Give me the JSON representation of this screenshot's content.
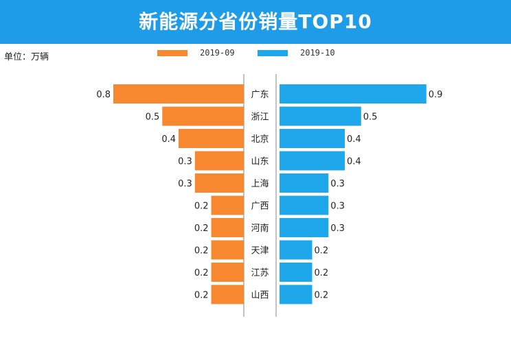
{
  "header": {
    "title": "新能源分省份销量TOP10"
  },
  "unit_label": "单位：万辆",
  "colors": {
    "banner": "#1e9ce8",
    "series_2019_09": "#f7882f",
    "series_2019_10": "#1ea7ea"
  },
  "chart_data": {
    "type": "bar",
    "orientation": "horizontal-butterfly",
    "title": "新能源分省份销量TOP10",
    "unit": "单位：万辆",
    "legend_position": "top",
    "categories": [
      "广东",
      "浙江",
      "北京",
      "山东",
      "上海",
      "广西",
      "河南",
      "天津",
      "江苏",
      "山西"
    ],
    "series": [
      {
        "name": "2019-09",
        "side": "left",
        "color": "#f7882f",
        "values": [
          0.8,
          0.5,
          0.4,
          0.3,
          0.3,
          0.2,
          0.2,
          0.2,
          0.2,
          0.2
        ]
      },
      {
        "name": "2019-10",
        "side": "right",
        "color": "#1ea7ea",
        "values": [
          0.9,
          0.5,
          0.4,
          0.4,
          0.3,
          0.3,
          0.3,
          0.2,
          0.2,
          0.2
        ]
      }
    ],
    "xlim": [
      0,
      0.9
    ]
  }
}
